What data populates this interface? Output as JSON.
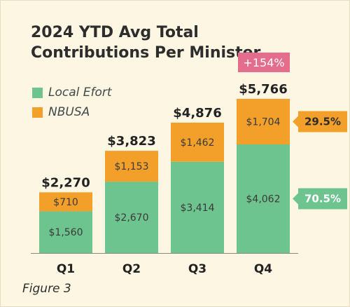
{
  "colors": {
    "local": "#6ec48f",
    "nbusa": "#f2a02a",
    "badge": "#e46c8d",
    "pct_text_local": "#ffffff",
    "pct_text_nbusa": "#2d2d2d"
  },
  "figure_caption": "Figure 3",
  "chart_data": {
    "type": "bar",
    "stacked": true,
    "title": "2024 YTD Avg Total Contributions Per Minister",
    "title_lines": [
      "2024 YTD Avg Total",
      "Contributions Per Minister"
    ],
    "categories": [
      "Q1",
      "Q2",
      "Q3",
      "Q4"
    ],
    "series": [
      {
        "name": "Local Efort",
        "values": [
          1560,
          2670,
          3414,
          4062
        ],
        "labels": [
          "$1,560",
          "$2,670",
          "$3,414",
          "$4,062"
        ]
      },
      {
        "name": "NBUSA",
        "values": [
          710,
          1153,
          1462,
          1704
        ],
        "labels": [
          "$710",
          "$1,153",
          "$1,462",
          "$1,704"
        ]
      }
    ],
    "totals": [
      2270,
      3823,
      4876,
      5766
    ],
    "total_labels": [
      "$2,270",
      "$3,823",
      "$4,876",
      "$5,766"
    ],
    "growth_badge": "+154%",
    "share_labels": [
      "29.5%",
      "70.5%"
    ],
    "ylim": [
      0,
      5766
    ],
    "legend_position": "top-left",
    "grid": false,
    "xlabel": "",
    "ylabel": ""
  }
}
